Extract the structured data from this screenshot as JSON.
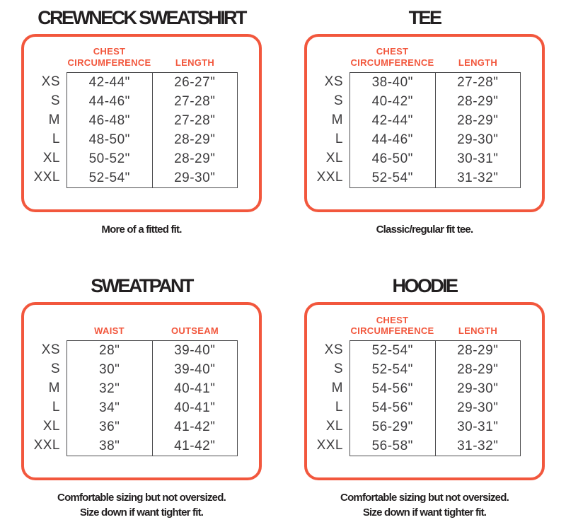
{
  "colors": {
    "accent": "#f2573d",
    "title_ink": "#221f20",
    "cell_ink": "#3d3c3e",
    "table_line": "#4d4d4f",
    "background": "#ffffff"
  },
  "panels": [
    {
      "title": "CREWNECK SWEATSHIRT",
      "col1_line1": "CHEST",
      "col1_line2": "CIRCUMFERENCE",
      "col2": "LENGTH",
      "rows": [
        {
          "size": "XS",
          "c1": "42-44\"",
          "c2": "26-27\""
        },
        {
          "size": "S",
          "c1": "44-46\"",
          "c2": "27-28\""
        },
        {
          "size": "M",
          "c1": "46-48\"",
          "c2": "27-28\""
        },
        {
          "size": "L",
          "c1": "48-50\"",
          "c2": "28-29\""
        },
        {
          "size": "XL",
          "c1": "50-52\"",
          "c2": "28-29\""
        },
        {
          "size": "XXL",
          "c1": "52-54\"",
          "c2": "29-30\""
        }
      ],
      "caption": [
        "More of a fitted fit."
      ]
    },
    {
      "title": "TEE",
      "col1_line1": "CHEST",
      "col1_line2": "CIRCUMFERENCE",
      "col2": "LENGTH",
      "rows": [
        {
          "size": "XS",
          "c1": "38-40\"",
          "c2": "27-28\""
        },
        {
          "size": "S",
          "c1": "40-42\"",
          "c2": "28-29\""
        },
        {
          "size": "M",
          "c1": "42-44\"",
          "c2": "28-29\""
        },
        {
          "size": "L",
          "c1": "44-46\"",
          "c2": "29-30\""
        },
        {
          "size": "XL",
          "c1": "46-50\"",
          "c2": "30-31\""
        },
        {
          "size": "XXL",
          "c1": "52-54\"",
          "c2": "31-32\""
        }
      ],
      "caption": [
        "Classic/regular fit tee."
      ]
    },
    {
      "title": "SWEATPANT",
      "col1_line1": "WAIST",
      "col1_line2": "",
      "col2": "OUTSEAM",
      "rows": [
        {
          "size": "XS",
          "c1": "28\"",
          "c2": "39-40\""
        },
        {
          "size": "S",
          "c1": "30\"",
          "c2": "39-40\""
        },
        {
          "size": "M",
          "c1": "32\"",
          "c2": "40-41\""
        },
        {
          "size": "L",
          "c1": "34\"",
          "c2": "40-41\""
        },
        {
          "size": "XL",
          "c1": "36\"",
          "c2": "41-42\""
        },
        {
          "size": "XXL",
          "c1": "38\"",
          "c2": "41-42\""
        }
      ],
      "caption": [
        "Comfortable sizing but not oversized.",
        "Size down if want tighter fit."
      ]
    },
    {
      "title": "HOODIE",
      "col1_line1": "CHEST",
      "col1_line2": "CIRCUMFERENCE",
      "col2": "LENGTH",
      "rows": [
        {
          "size": "XS",
          "c1": "52-54\"",
          "c2": "28-29\""
        },
        {
          "size": "S",
          "c1": "52-54\"",
          "c2": "28-29\""
        },
        {
          "size": "M",
          "c1": "54-56\"",
          "c2": "29-30\""
        },
        {
          "size": "L",
          "c1": "54-56\"",
          "c2": "29-30\""
        },
        {
          "size": "XL",
          "c1": "56-29\"",
          "c2": "30-31\""
        },
        {
          "size": "XXL",
          "c1": "56-58\"",
          "c2": "31-32\""
        }
      ],
      "caption": [
        "Comfortable sizing but not oversized.",
        "Size down if want tighter fit."
      ]
    }
  ]
}
